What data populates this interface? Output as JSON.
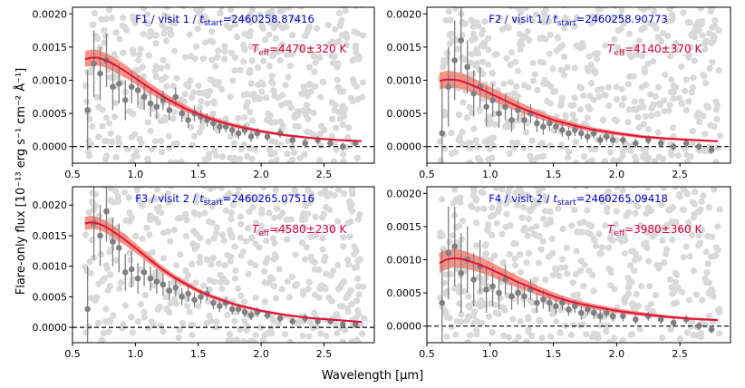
{
  "figure": {
    "xlabel": "Wavelength [μm]",
    "ylabel": "Flare-only flux [10⁻¹³ erg s⁻¹ cm⁻² Å⁻¹]"
  },
  "colors": {
    "data_points": "#808080",
    "background_points": "#d9d9d9",
    "model_band": "#fa8072",
    "model_line": "#dc143c",
    "title": "#0000cc",
    "teff": "#e0003c"
  },
  "chart_data": [
    {
      "type": "scatter",
      "panel": "F1",
      "title_prefix": "F1 / visit 1 / ",
      "title_t": "t",
      "title_sub": "start",
      "title_suffix": "=2460258.87416",
      "teff_T": "T",
      "teff_sub": "eff",
      "teff_value": "=4470±320 K",
      "xlim": [
        0.5,
        2.9
      ],
      "ylim": [
        -0.00025,
        0.0021
      ],
      "xticks": [
        "0.5",
        "1.0",
        "1.5",
        "2.0",
        "2.5"
      ],
      "yticks": [
        "0.0000",
        "0.0005",
        "0.0010",
        "0.0015",
        "0.0020"
      ],
      "model": {
        "x": [
          0.6,
          0.65,
          0.7,
          0.75,
          0.8,
          0.9,
          1.0,
          1.1,
          1.2,
          1.3,
          1.4,
          1.5,
          1.6,
          1.7,
          1.8,
          2.0,
          2.2,
          2.4,
          2.6,
          2.8
        ],
        "y": [
          0.00132,
          0.00134,
          0.00134,
          0.00131,
          0.00127,
          0.00116,
          0.00103,
          0.0009,
          0.00078,
          0.00067,
          0.00057,
          0.00049,
          0.00042,
          0.00036,
          0.00031,
          0.00023,
          0.00017,
          0.00013,
          0.0001,
          8e-05
        ],
        "band": [
          0.00012,
          0.00012,
          0.00012,
          0.00011,
          0.00011,
          0.0001,
          9e-05,
          8e-05,
          7e-05,
          6e-05,
          5e-05,
          4.5e-05,
          4e-05,
          3.5e-05,
          3e-05,
          2.5e-05,
          2e-05,
          1.8e-05,
          1.6e-05,
          1.5e-05
        ]
      },
      "binned": {
        "x": [
          0.62,
          0.67,
          0.72,
          0.77,
          0.82,
          0.87,
          0.92,
          0.97,
          1.02,
          1.07,
          1.12,
          1.17,
          1.22,
          1.27,
          1.32,
          1.37,
          1.42,
          1.47,
          1.52,
          1.57,
          1.62,
          1.67,
          1.72,
          1.77,
          1.82,
          1.87,
          1.92,
          1.97,
          2.05,
          2.15,
          2.25,
          2.35,
          2.45,
          2.55,
          2.65,
          2.75
        ],
        "y": [
          0.00055,
          0.00125,
          0.0011,
          0.0013,
          0.0009,
          0.00095,
          0.0007,
          0.0009,
          0.00085,
          0.00075,
          0.00065,
          0.0006,
          0.0007,
          0.00055,
          0.00075,
          0.0005,
          0.0004,
          0.0005,
          0.00045,
          0.0004,
          0.00035,
          0.0003,
          0.0003,
          0.00025,
          0.0002,
          0.00025,
          0.00015,
          0.0002,
          0.00015,
          0.0002,
          0.0001,
          5e-05,
          0.0001,
          5e-05,
          0.0,
          5e-05
        ],
        "err": [
          0.0006,
          0.0005,
          0.0004,
          0.0004,
          0.00035,
          0.0003,
          0.0003,
          0.00025,
          0.00022,
          0.0002,
          0.0002,
          0.00018,
          0.00015,
          0.00015,
          0.00014,
          0.00013,
          0.00012,
          0.00012,
          0.0001,
          0.0001,
          0.0001,
          0.0001,
          9e-05,
          9e-05,
          8e-05,
          8e-05,
          8e-05,
          8e-05,
          7e-05,
          7e-05,
          7e-05,
          7e-05,
          6e-05,
          6e-05,
          6e-05,
          6e-05
        ]
      }
    },
    {
      "type": "scatter",
      "panel": "F2",
      "title_prefix": "F2 / visit 1 / ",
      "title_t": "t",
      "title_sub": "start",
      "title_suffix": "=2460258.90773",
      "teff_T": "T",
      "teff_sub": "eff",
      "teff_value": "=4140±370 K",
      "xlim": [
        0.5,
        2.9
      ],
      "ylim": [
        -0.00025,
        0.0021
      ],
      "xticks": [
        "0.5",
        "1.0",
        "1.5",
        "2.0",
        "2.5"
      ],
      "yticks": [
        "0.0000",
        "0.0005",
        "0.0010",
        "0.0015",
        "0.0020"
      ],
      "model": {
        "x": [
          0.6,
          0.65,
          0.7,
          0.75,
          0.8,
          0.9,
          1.0,
          1.1,
          1.2,
          1.3,
          1.4,
          1.5,
          1.6,
          1.7,
          1.8,
          2.0,
          2.2,
          2.4,
          2.6,
          2.8
        ],
        "y": [
          0.00099,
          0.00101,
          0.00101,
          0.001,
          0.00097,
          0.00089,
          0.0008,
          0.00071,
          0.00062,
          0.00054,
          0.00047,
          0.0004,
          0.00035,
          0.0003,
          0.00026,
          0.0002,
          0.00015,
          0.00012,
          0.0001,
          8e-05
        ],
        "band": [
          0.00013,
          0.00013,
          0.00013,
          0.00012,
          0.00012,
          0.00011,
          0.0001,
          9e-05,
          8e-05,
          7e-05,
          6e-05,
          5e-05,
          4.5e-05,
          4e-05,
          3.5e-05,
          3e-05,
          2.5e-05,
          2e-05,
          1.8e-05,
          1.6e-05
        ]
      },
      "binned": {
        "x": [
          0.62,
          0.67,
          0.72,
          0.77,
          0.82,
          0.87,
          0.92,
          0.97,
          1.02,
          1.07,
          1.12,
          1.17,
          1.22,
          1.27,
          1.32,
          1.37,
          1.42,
          1.47,
          1.52,
          1.57,
          1.62,
          1.67,
          1.72,
          1.77,
          1.82,
          1.87,
          1.92,
          1.97,
          2.05,
          2.15,
          2.25,
          2.35,
          2.45,
          2.55,
          2.65,
          2.75
        ],
        "y": [
          0.0002,
          0.0009,
          0.0013,
          0.0016,
          0.0012,
          0.0008,
          0.0009,
          0.0006,
          0.0007,
          0.0005,
          0.0006,
          0.0004,
          0.00055,
          0.0004,
          0.0005,
          0.00035,
          0.0003,
          0.00035,
          0.0003,
          0.00025,
          0.0002,
          0.00025,
          0.0002,
          0.00015,
          0.0002,
          0.0001,
          0.00015,
          0.0001,
          0.0001,
          5e-05,
          0.0001,
          5e-05,
          0.0,
          5e-05,
          0.0,
          -5e-05
        ],
        "err": [
          0.0008,
          0.0006,
          0.0006,
          0.0005,
          0.0004,
          0.00035,
          0.0003,
          0.0003,
          0.00025,
          0.00022,
          0.0002,
          0.00018,
          0.00016,
          0.00015,
          0.00014,
          0.00013,
          0.00012,
          0.00011,
          0.0001,
          0.0001,
          0.0001,
          9e-05,
          9e-05,
          9e-05,
          8e-05,
          8e-05,
          8e-05,
          8e-05,
          7e-05,
          7e-05,
          7e-05,
          7e-05,
          6e-05,
          6e-05,
          6e-05,
          6e-05
        ]
      }
    },
    {
      "type": "scatter",
      "panel": "F3",
      "title_prefix": "F3 / visit 2 / ",
      "title_t": "t",
      "title_sub": "start",
      "title_suffix": "=2460265.07516",
      "teff_T": "T",
      "teff_sub": "eff",
      "teff_value": "=4580±230 K",
      "xlim": [
        0.5,
        2.9
      ],
      "ylim": [
        -0.00025,
        0.0023
      ],
      "xticks": [
        "0.5",
        "1.0",
        "1.5",
        "2.0",
        "2.5"
      ],
      "yticks": [
        "0.0000",
        "0.0005",
        "0.0010",
        "0.0015",
        "0.0020"
      ],
      "model": {
        "x": [
          0.6,
          0.65,
          0.7,
          0.75,
          0.8,
          0.9,
          1.0,
          1.1,
          1.2,
          1.3,
          1.4,
          1.5,
          1.6,
          1.7,
          1.8,
          2.0,
          2.2,
          2.4,
          2.6,
          2.8
        ],
        "y": [
          0.0017,
          0.00172,
          0.0017,
          0.00166,
          0.0016,
          0.00146,
          0.0013,
          0.00113,
          0.00097,
          0.00083,
          0.00071,
          0.0006,
          0.00051,
          0.00044,
          0.00037,
          0.00027,
          0.0002,
          0.00015,
          0.00012,
          9e-05
        ],
        "band": [
          0.00011,
          0.00011,
          0.0001,
          0.0001,
          0.0001,
          9e-05,
          8e-05,
          7e-05,
          6e-05,
          5e-05,
          4.5e-05,
          4e-05,
          3.5e-05,
          3e-05,
          2.8e-05,
          2.4e-05,
          2e-05,
          1.8e-05,
          1.6e-05,
          1.5e-05
        ]
      },
      "binned": {
        "x": [
          0.62,
          0.67,
          0.72,
          0.77,
          0.82,
          0.87,
          0.92,
          0.97,
          1.02,
          1.07,
          1.12,
          1.17,
          1.22,
          1.27,
          1.32,
          1.37,
          1.42,
          1.47,
          1.52,
          1.57,
          1.62,
          1.67,
          1.72,
          1.77,
          1.82,
          1.87,
          1.92,
          1.97,
          2.05,
          2.15,
          2.25,
          2.35,
          2.45,
          2.55,
          2.65,
          2.75
        ],
        "y": [
          0.0003,
          0.0017,
          0.0015,
          0.0019,
          0.0014,
          0.0013,
          0.0009,
          0.00095,
          0.0008,
          0.0009,
          0.0008,
          0.00075,
          0.0007,
          0.0006,
          0.00065,
          0.0005,
          0.00055,
          0.00045,
          0.0005,
          0.00055,
          0.0004,
          0.00035,
          0.0004,
          0.0003,
          0.0003,
          0.00025,
          0.0002,
          0.00025,
          0.0002,
          0.00015,
          0.0001,
          0.00015,
          0.0001,
          0.0001,
          5e-05,
          5e-05
        ],
        "err": [
          0.0007,
          0.0006,
          0.0005,
          0.0005,
          0.0004,
          0.0004,
          0.0003,
          0.0003,
          0.00025,
          0.00022,
          0.0002,
          0.0002,
          0.00018,
          0.00016,
          0.00015,
          0.00014,
          0.00013,
          0.00012,
          0.00011,
          0.00011,
          0.0001,
          0.0001,
          0.0001,
          9e-05,
          9e-05,
          8e-05,
          8e-05,
          8e-05,
          7e-05,
          7e-05,
          7e-05,
          7e-05,
          6e-05,
          6e-05,
          6e-05,
          6e-05
        ]
      }
    },
    {
      "type": "scatter",
      "panel": "F4",
      "title_prefix": "F4 / visit 2 / ",
      "title_t": "t",
      "title_sub": "start",
      "title_suffix": "=2460265.09418",
      "teff_T": "T",
      "teff_sub": "eff",
      "teff_value": "=3980±360 K",
      "xlim": [
        0.5,
        2.9
      ],
      "ylim": [
        -0.00025,
        0.0021
      ],
      "xticks": [
        "0.5",
        "1.0",
        "1.5",
        "2.0",
        "2.5"
      ],
      "yticks": [
        "0.0000",
        "0.0005",
        "0.0010",
        "0.0015",
        "0.0020"
      ],
      "model": {
        "x": [
          0.6,
          0.65,
          0.7,
          0.75,
          0.8,
          0.9,
          1.0,
          1.1,
          1.2,
          1.3,
          1.4,
          1.5,
          1.6,
          1.7,
          1.8,
          2.0,
          2.2,
          2.4,
          2.6,
          2.8
        ],
        "y": [
          0.00095,
          0.001,
          0.00102,
          0.00102,
          0.001,
          0.00094,
          0.00086,
          0.00077,
          0.00068,
          0.0006,
          0.00052,
          0.00045,
          0.00039,
          0.00034,
          0.0003,
          0.00023,
          0.00018,
          0.00014,
          0.00011,
          9e-05
        ],
        "band": [
          0.00015,
          0.00015,
          0.00014,
          0.00014,
          0.00013,
          0.00012,
          0.00011,
          0.0001,
          9e-05,
          8e-05,
          7e-05,
          6e-05,
          5e-05,
          4.5e-05,
          4e-05,
          3.5e-05,
          3e-05,
          2.5e-05,
          2e-05,
          1.8e-05
        ]
      },
      "binned": {
        "x": [
          0.62,
          0.67,
          0.72,
          0.77,
          0.82,
          0.87,
          0.92,
          0.97,
          1.02,
          1.07,
          1.12,
          1.17,
          1.22,
          1.27,
          1.32,
          1.37,
          1.42,
          1.47,
          1.52,
          1.57,
          1.62,
          1.67,
          1.72,
          1.77,
          1.82,
          1.87,
          1.92,
          1.97,
          2.05,
          2.15,
          2.25,
          2.35,
          2.45,
          2.55,
          2.65,
          2.75
        ],
        "y": [
          0.00035,
          0.0011,
          0.0012,
          0.0008,
          0.001,
          0.0007,
          0.0009,
          0.00055,
          0.0006,
          0.0005,
          0.0007,
          0.00045,
          0.0005,
          0.00045,
          0.00055,
          0.00035,
          0.0004,
          0.00035,
          0.0003,
          0.00035,
          0.00025,
          0.0003,
          0.0002,
          0.00025,
          0.0002,
          0.00015,
          0.0002,
          0.00015,
          0.00015,
          0.0001,
          0.00015,
          0.0001,
          5e-05,
          0.0001,
          0.0,
          -5e-05
        ],
        "err": [
          0.0008,
          0.0007,
          0.0006,
          0.0006,
          0.0005,
          0.0004,
          0.0004,
          0.00035,
          0.0003,
          0.00025,
          0.00022,
          0.0002,
          0.00018,
          0.00017,
          0.00016,
          0.00015,
          0.00014,
          0.00013,
          0.00012,
          0.00011,
          0.0001,
          0.0001,
          0.0001,
          9e-05,
          9e-05,
          9e-05,
          8e-05,
          8e-05,
          8e-05,
          7e-05,
          7e-05,
          7e-05,
          7e-05,
          6e-05,
          6e-05,
          6e-05
        ]
      }
    }
  ]
}
